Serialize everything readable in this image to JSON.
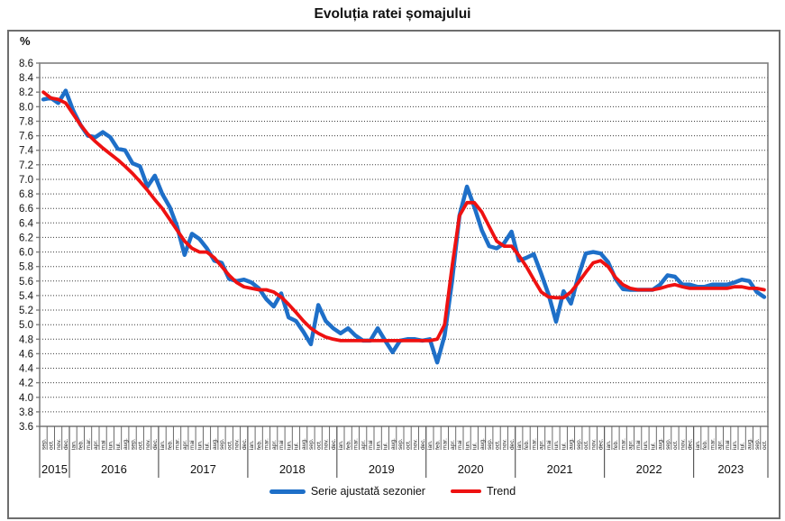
{
  "title": "Evoluția ratei șomajului",
  "y_axis_unit_label": "%",
  "colors": {
    "series_adjusted": "#1e6fc8",
    "series_trend": "#ee1111",
    "axis": "#7f7f7f",
    "gridline": "#3a3a3a",
    "text": "#111111"
  },
  "chart_data": {
    "type": "line",
    "title": "Evoluția ratei șomajului",
    "ylabel": "%",
    "ylim": [
      3.6,
      8.6
    ],
    "ytick_step": 0.2,
    "grid": "horizontal-dotted",
    "legend_position": "bottom-center",
    "x_start": "sep. 2015",
    "x_end": "oct. 2023",
    "years": [
      {
        "label": "2015",
        "n_months": 4
      },
      {
        "label": "2016",
        "n_months": 12
      },
      {
        "label": "2017",
        "n_months": 12
      },
      {
        "label": "2018",
        "n_months": 12
      },
      {
        "label": "2019",
        "n_months": 12
      },
      {
        "label": "2020",
        "n_months": 12
      },
      {
        "label": "2021",
        "n_months": 12
      },
      {
        "label": "2022",
        "n_months": 12
      },
      {
        "label": "2023",
        "n_months": 10
      }
    ],
    "month_labels": [
      "sep.",
      "oct.",
      "nov.",
      "dec.",
      "ian.",
      "feb.",
      "mar.",
      "apr.",
      "mai",
      "iun.",
      "iul.",
      "aug.",
      "sep.",
      "oct.",
      "nov.",
      "dec.",
      "ian.",
      "feb.",
      "mar.",
      "apr.",
      "mai",
      "iun.",
      "iul.",
      "aug.",
      "sep.",
      "oct.",
      "nov.",
      "dec.",
      "ian.",
      "feb.",
      "mar.",
      "apr.",
      "mai",
      "iun.",
      "iul.",
      "aug.",
      "sep.",
      "oct.",
      "nov.",
      "dec.",
      "ian.",
      "feb.",
      "mar.",
      "apr.",
      "mai",
      "iun.",
      "iul.",
      "aug.",
      "sep.",
      "oct.",
      "nov.",
      "dec.",
      "ian.",
      "feb.",
      "mar.",
      "apr.",
      "mai",
      "iun.",
      "iul.",
      "aug.",
      "sep.",
      "oct.",
      "nov.",
      "dec.",
      "ian.",
      "feb.",
      "mar.",
      "apr.",
      "mai",
      "iun.",
      "iul.",
      "aug.",
      "sep.",
      "oct.",
      "nov.",
      "dec.",
      "ian.",
      "feb.",
      "mar.",
      "apr.",
      "mai",
      "iun.",
      "iul.",
      "aug.",
      "sep.",
      "oct.",
      "nov.",
      "dec.",
      "ian.",
      "feb.",
      "mar.",
      "apr.",
      "mai",
      "iun.",
      "iul.",
      "aug.",
      "sep.",
      "oct."
    ],
    "series": [
      {
        "name": "Serie ajustată sezonier",
        "color": "#1e6fc8",
        "line_width": 4.5,
        "values": [
          8.1,
          8.12,
          8.05,
          8.22,
          7.95,
          7.75,
          7.6,
          7.58,
          7.65,
          7.58,
          7.42,
          7.4,
          7.22,
          7.18,
          6.9,
          7.05,
          6.8,
          6.62,
          6.35,
          5.96,
          6.25,
          6.18,
          6.05,
          5.88,
          5.85,
          5.63,
          5.6,
          5.62,
          5.58,
          5.5,
          5.35,
          5.25,
          5.43,
          5.1,
          5.05,
          4.9,
          4.73,
          5.27,
          5.05,
          4.95,
          4.88,
          4.95,
          4.85,
          4.78,
          4.78,
          4.95,
          4.78,
          4.62,
          4.78,
          4.8,
          4.8,
          4.78,
          4.8,
          4.48,
          4.85,
          5.6,
          6.5,
          6.9,
          6.62,
          6.3,
          6.08,
          6.05,
          6.12,
          6.28,
          5.88,
          5.92,
          5.97,
          5.7,
          5.41,
          5.04,
          5.46,
          5.29,
          5.67,
          5.98,
          6.0,
          5.98,
          5.86,
          5.63,
          5.49,
          5.48,
          5.48,
          5.48,
          5.48,
          5.55,
          5.68,
          5.66,
          5.55,
          5.55,
          5.52,
          5.52,
          5.55,
          5.55,
          5.55,
          5.58,
          5.62,
          5.6,
          5.45,
          5.38
        ]
      },
      {
        "name": "Trend",
        "color": "#ee1111",
        "line_width": 3.8,
        "values": [
          8.2,
          8.12,
          8.1,
          8.05,
          7.9,
          7.75,
          7.62,
          7.52,
          7.43,
          7.35,
          7.27,
          7.18,
          7.08,
          6.97,
          6.85,
          6.72,
          6.6,
          6.45,
          6.3,
          6.15,
          6.05,
          6.0,
          6.0,
          5.92,
          5.8,
          5.68,
          5.58,
          5.52,
          5.5,
          5.48,
          5.48,
          5.45,
          5.38,
          5.28,
          5.17,
          5.05,
          4.95,
          4.88,
          4.83,
          4.8,
          4.78,
          4.78,
          4.78,
          4.78,
          4.78,
          4.78,
          4.78,
          4.78,
          4.78,
          4.78,
          4.78,
          4.78,
          4.78,
          4.8,
          5.0,
          5.8,
          6.5,
          6.68,
          6.68,
          6.55,
          6.35,
          6.15,
          6.08,
          6.08,
          5.95,
          5.8,
          5.62,
          5.45,
          5.38,
          5.37,
          5.37,
          5.45,
          5.58,
          5.72,
          5.85,
          5.88,
          5.8,
          5.65,
          5.55,
          5.5,
          5.48,
          5.48,
          5.48,
          5.5,
          5.53,
          5.55,
          5.52,
          5.5,
          5.5,
          5.5,
          5.5,
          5.5,
          5.5,
          5.52,
          5.52,
          5.5,
          5.5,
          5.48
        ]
      }
    ]
  }
}
